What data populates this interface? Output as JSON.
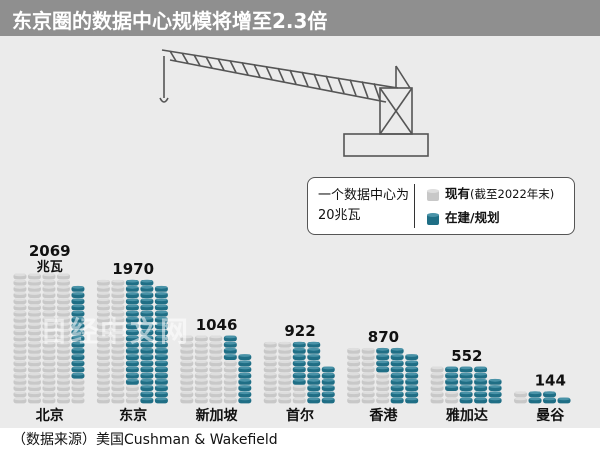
{
  "title": "东京圈的数据中心规模将增至2.3倍",
  "source": "（数据来源）美国Cushman & Wakefield",
  "watermark": "日经中文网",
  "colors": {
    "existing": "#c8c8c8",
    "existing_top": "#dedede",
    "planned": "#1f6e85",
    "planned_top": "#4a93a8",
    "header_bg": "#8f8f8f"
  },
  "legend": {
    "unit_label": "一个数据中心为20兆瓦",
    "existing_label": "现有",
    "existing_note": "(截至2022年末)",
    "planned_label": "在建/规划"
  },
  "chart_data": {
    "type": "bar",
    "title": "东京圈的数据中心规模将增至2.3倍",
    "categories": [
      "北京",
      "东京",
      "新加坡",
      "首尔",
      "香港",
      "雅加达",
      "曼谷"
    ],
    "series": [
      {
        "name": "在建/规划",
        "values": [
          300,
          1120,
          240,
          460,
          420,
          400,
          100
        ]
      },
      {
        "name": "现有",
        "values": [
          1769,
          850,
          806,
          462,
          450,
          152,
          44
        ]
      }
    ],
    "totals": [
      2069,
      1970,
      1046,
      922,
      870,
      552,
      144
    ],
    "total_labels": [
      "2069",
      "1970",
      "1046",
      "922",
      "870",
      "552",
      "144"
    ],
    "unit_label": "兆瓦",
    "stack_unit": 20
  }
}
